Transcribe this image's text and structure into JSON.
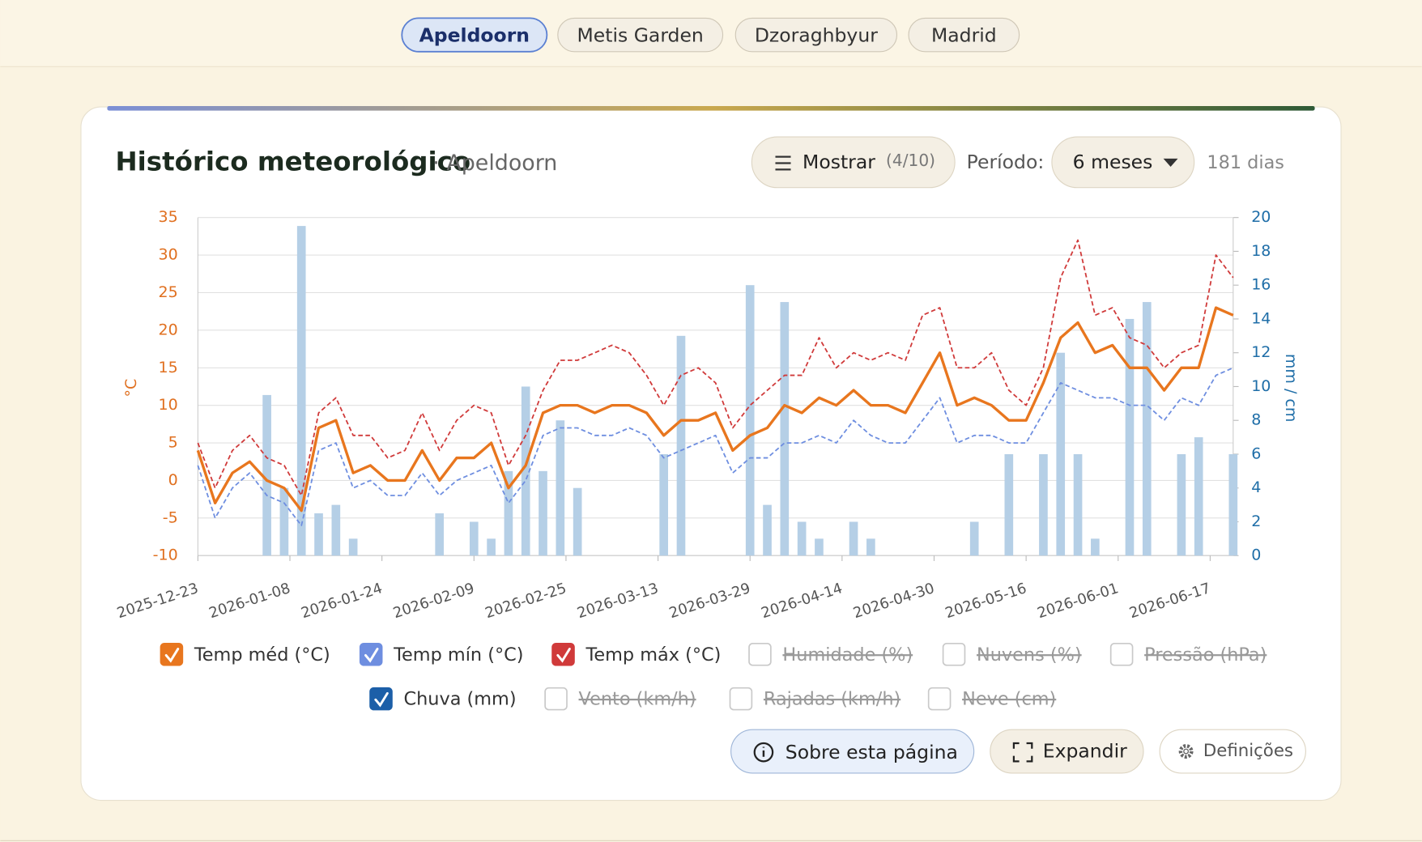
{
  "tabs": [
    {
      "label": "Apeldoorn",
      "selected": true
    },
    {
      "label": "Metis Garden",
      "selected": false
    },
    {
      "label": "Dzoraghbyur",
      "selected": false
    },
    {
      "label": "Madrid",
      "selected": false
    }
  ],
  "header": {
    "title": "Histórico meteorológico",
    "subtitle": "· Apeldoorn"
  },
  "show_button": {
    "label": "Mostrar",
    "count": "(4/10)"
  },
  "period": {
    "label": "Período:",
    "value": "6 meses",
    "days": "181 dias"
  },
  "chart_data": {
    "type": "line",
    "x": [
      "2025-12-23",
      "2025-12-26",
      "2025-12-29",
      "2026-01-01",
      "2026-01-04",
      "2026-01-07",
      "2026-01-10",
      "2026-01-13",
      "2026-01-16",
      "2026-01-19",
      "2026-01-22",
      "2026-01-25",
      "2026-01-28",
      "2026-01-31",
      "2026-02-03",
      "2026-02-06",
      "2026-02-09",
      "2026-02-12",
      "2026-02-15",
      "2026-02-18",
      "2026-02-21",
      "2026-02-24",
      "2026-02-27",
      "2026-03-02",
      "2026-03-05",
      "2026-03-08",
      "2026-03-11",
      "2026-03-14",
      "2026-03-17",
      "2026-03-20",
      "2026-03-23",
      "2026-03-26",
      "2026-03-29",
      "2026-04-01",
      "2026-04-04",
      "2026-04-07",
      "2026-04-10",
      "2026-04-13",
      "2026-04-16",
      "2026-04-19",
      "2026-04-22",
      "2026-04-25",
      "2026-04-28",
      "2026-05-01",
      "2026-05-04",
      "2026-05-07",
      "2026-05-10",
      "2026-05-13",
      "2026-05-16",
      "2026-05-19",
      "2026-05-22",
      "2026-05-25",
      "2026-05-28",
      "2026-05-31",
      "2026-06-03",
      "2026-06-06",
      "2026-06-09",
      "2026-06-12",
      "2026-06-15",
      "2026-06-18",
      "2026-06-21"
    ],
    "xlim": [
      "2025-12-23",
      "2026-06-21"
    ],
    "xticks": [
      "2025-12-23",
      "2026-01-08",
      "2026-01-24",
      "2026-02-09",
      "2026-02-25",
      "2026-03-13",
      "2026-03-29",
      "2026-04-14",
      "2026-04-30",
      "2026-05-16",
      "2026-06-01",
      "2026-06-17"
    ],
    "ylabel": "°C",
    "ylim": [
      -10,
      35
    ],
    "yticks": [
      -10,
      -5,
      0,
      5,
      10,
      15,
      20,
      25,
      30,
      35
    ],
    "y2label": "mm / cm",
    "y2lim": [
      0,
      20
    ],
    "y2ticks": [
      0,
      2,
      4,
      6,
      8,
      10,
      12,
      14,
      16,
      18,
      20
    ],
    "grid": true,
    "series": [
      {
        "name": "Temp méd (°C)",
        "color": "#e8761e",
        "style": "solid",
        "values": [
          4,
          -3,
          1,
          2.5,
          0,
          -1,
          -4,
          7,
          8,
          1,
          2,
          0,
          0,
          4,
          0,
          3,
          3,
          5,
          -1,
          2,
          9,
          10,
          10,
          9,
          10,
          10,
          9,
          6,
          8,
          8,
          9,
          4,
          6,
          7,
          10,
          9,
          11,
          10,
          12,
          10,
          10,
          9,
          13,
          17,
          10,
          11,
          10,
          8,
          8,
          13,
          19,
          21,
          17,
          18,
          15,
          15,
          12,
          15,
          15,
          23,
          22
        ]
      },
      {
        "name": "Temp mín (°C)",
        "color": "#6e8ee0",
        "style": "dashed",
        "values": [
          2,
          -5,
          -1,
          1,
          -2,
          -3,
          -6,
          4,
          5,
          -1,
          0,
          -2,
          -2,
          1,
          -2,
          0,
          1,
          2,
          -3,
          0,
          6,
          7,
          7,
          6,
          6,
          7,
          6,
          3,
          4,
          5,
          6,
          1,
          3,
          3,
          5,
          5,
          6,
          5,
          8,
          6,
          5,
          5,
          8,
          11,
          5,
          6,
          6,
          5,
          5,
          9,
          13,
          12,
          11,
          11,
          10,
          10,
          8,
          11,
          10,
          14,
          15
        ]
      },
      {
        "name": "Temp máx (°C)",
        "color": "#d03a3a",
        "style": "dashed",
        "values": [
          5,
          -1,
          4,
          6,
          3,
          2,
          -2,
          9,
          11,
          6,
          6,
          3,
          4,
          9,
          4,
          8,
          10,
          9,
          2,
          6,
          12,
          16,
          16,
          17,
          18,
          17,
          14,
          10,
          14,
          15,
          13,
          7,
          10,
          12,
          14,
          14,
          19,
          15,
          17,
          16,
          17,
          16,
          22,
          23,
          15,
          15,
          17,
          12,
          10,
          15,
          27,
          32,
          22,
          23,
          19,
          18,
          15,
          17,
          18,
          30,
          27
        ]
      },
      {
        "name": "Chuva (mm)",
        "color": "#b5cfe6",
        "marker_color": "#1c5fa8",
        "type": "bar",
        "axis": "y2",
        "values": [
          0,
          0,
          0,
          0,
          9.5,
          4,
          19.5,
          2.5,
          3,
          1,
          0,
          0,
          0,
          0,
          2.5,
          0,
          2,
          1,
          5,
          10,
          5,
          8,
          4,
          0,
          0,
          0,
          0,
          6,
          13,
          0,
          0,
          0,
          16,
          3,
          15,
          2,
          1,
          0,
          2,
          1,
          0,
          0,
          0,
          0,
          0,
          2,
          0,
          6,
          0,
          6,
          12,
          6,
          1,
          0,
          14,
          15,
          0,
          6,
          7,
          0,
          6
        ]
      }
    ],
    "hidden_series": [
      {
        "name": "Humidade (%)"
      },
      {
        "name": "Nuvens (%)"
      },
      {
        "name": "Pressão (hPa)"
      },
      {
        "name": "Vento (km/h)"
      },
      {
        "name": "Rajadas (km/h)"
      },
      {
        "name": "Neve (cm)"
      }
    ]
  },
  "buttons": [
    "Sobre esta página",
    "Expandir",
    "Definições"
  ]
}
